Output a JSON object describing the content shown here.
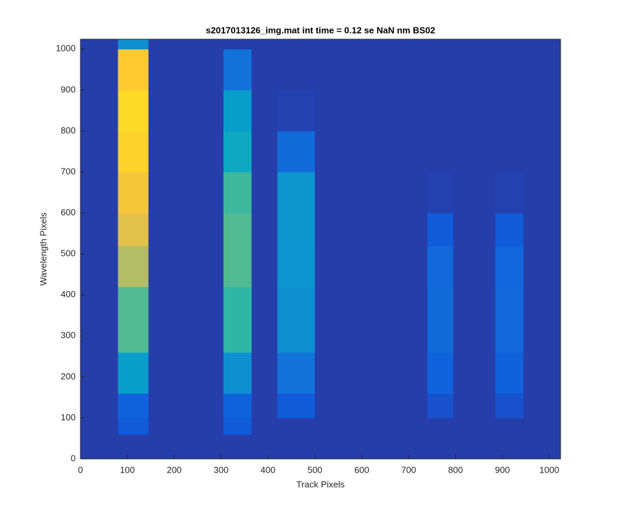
{
  "chart_data": {
    "type": "heatmap",
    "title": "s2017013126_img.mat int time = 0.12 se  NaN nm BS02",
    "xlabel": "Track Pixels",
    "ylabel": "Wavelength Pixels",
    "xlim": [
      0,
      1024
    ],
    "ylim": [
      0,
      1024
    ],
    "xticks": [
      0,
      100,
      200,
      300,
      400,
      500,
      600,
      700,
      800,
      900,
      1000
    ],
    "yticks": [
      0,
      100,
      200,
      300,
      400,
      500,
      600,
      700,
      800,
      900,
      1000
    ],
    "x_edges": [
      0,
      80,
      145,
      305,
      365,
      420,
      500,
      740,
      795,
      885,
      945,
      1024
    ],
    "y_edges": [
      0,
      60,
      100,
      160,
      260,
      420,
      520,
      600,
      700,
      800,
      900,
      1000,
      1024
    ],
    "clim": [
      0,
      1
    ],
    "colormap": [
      "#352a87",
      "#0f5cdd",
      "#1481d6",
      "#06a4ca",
      "#2eb7a4",
      "#87bf77",
      "#d1bb59",
      "#fec832",
      "#f9fb0e"
    ],
    "values": [
      [
        0.05,
        0.05,
        0.05,
        0.05,
        0.05,
        0.05,
        0.05,
        0.05,
        0.05,
        0.05,
        0.05
      ],
      [
        0.05,
        0.12,
        0.05,
        0.12,
        0.05,
        0.05,
        0.05,
        0.05,
        0.05,
        0.05,
        0.05
      ],
      [
        0.05,
        0.15,
        0.05,
        0.15,
        0.05,
        0.12,
        0.05,
        0.1,
        0.05,
        0.1,
        0.05
      ],
      [
        0.05,
        0.35,
        0.05,
        0.3,
        0.05,
        0.2,
        0.05,
        0.15,
        0.05,
        0.14,
        0.05
      ],
      [
        0.05,
        0.55,
        0.05,
        0.5,
        0.05,
        0.3,
        0.05,
        0.18,
        0.05,
        0.17,
        0.05
      ],
      [
        0.05,
        0.7,
        0.05,
        0.55,
        0.05,
        0.32,
        0.05,
        0.17,
        0.05,
        0.16,
        0.05
      ],
      [
        0.05,
        0.8,
        0.05,
        0.55,
        0.05,
        0.33,
        0.05,
        0.12,
        0.05,
        0.12,
        0.05
      ],
      [
        0.05,
        0.85,
        0.05,
        0.52,
        0.05,
        0.33,
        0.05,
        0.06,
        0.05,
        0.06,
        0.05
      ],
      [
        0.05,
        0.9,
        0.05,
        0.4,
        0.05,
        0.18,
        0.05,
        0.05,
        0.05,
        0.05,
        0.05
      ],
      [
        0.05,
        0.92,
        0.05,
        0.35,
        0.05,
        0.06,
        0.05,
        0.05,
        0.05,
        0.05,
        0.05
      ],
      [
        0.05,
        0.88,
        0.05,
        0.2,
        0.05,
        0.05,
        0.05,
        0.05,
        0.05,
        0.05,
        0.05
      ],
      [
        0.05,
        0.3,
        0.05,
        0.05,
        0.05,
        0.05,
        0.05,
        0.05,
        0.05,
        0.05,
        0.05
      ]
    ]
  }
}
